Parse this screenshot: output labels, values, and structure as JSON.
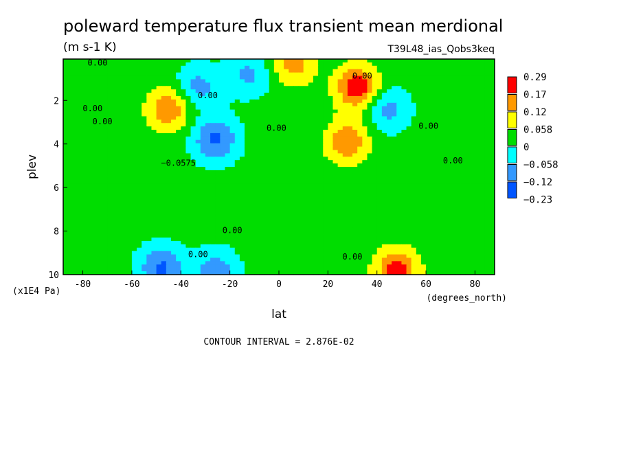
{
  "chart_data": {
    "type": "heatmap",
    "title": "poleward temperature flux transient mean merdional",
    "subtitle": "(m s-1 K)",
    "run_id": "T39L48_ias_Qobs3keq",
    "xlabel": "lat",
    "xunits": "(degrees_north)",
    "ylabel": "plev",
    "yunits": "(x1E4 Pa)",
    "xlim": [
      -88,
      88
    ],
    "ylim": [
      0.1,
      10
    ],
    "y_inverted": true,
    "x_ticks": [
      -80,
      -60,
      -40,
      -20,
      0,
      20,
      40,
      60,
      80
    ],
    "x_tick_labels": [
      "-80",
      "-60",
      "-40",
      "-20",
      "0",
      "20",
      "40",
      "60",
      "80"
    ],
    "y_ticks": [
      2,
      4,
      6,
      8,
      10
    ],
    "y_tick_labels": [
      "2",
      "4",
      "6",
      "8",
      "10"
    ],
    "levels": [
      -0.23,
      -0.12,
      -0.058,
      0,
      0.058,
      0.12,
      0.17,
      0.29
    ],
    "colorbar_labels": [
      "0.29",
      "0.17",
      "0.12",
      "0.058",
      "0",
      "−0.058",
      "−0.12",
      "−0.23"
    ],
    "colorbar_colors": [
      "#ff0000",
      "#ff9900",
      "#ffff00",
      "#00dd00",
      "#00ffff",
      "#3399ff",
      "#0055ff"
    ],
    "contour_labels": [
      "0.00",
      "0.00",
      "0.00",
      "0.00",
      "−0.0575",
      "0.00",
      "0.00",
      "0.00",
      "0.00",
      "0.00",
      "0.00",
      "0.00"
    ],
    "contour_interval_text": "CONTOUR INTERVAL = 2.876E-02",
    "features": [
      {
        "sign": "positive",
        "lat": -45,
        "plev": 2.4,
        "peak": 0.15
      },
      {
        "sign": "positive",
        "lat": 28,
        "plev": 3.9,
        "peak": 0.15
      },
      {
        "sign": "positive",
        "lat": 32,
        "plev": 1.4,
        "peak": 0.2
      },
      {
        "sign": "positive",
        "lat": 48,
        "plev": 9.8,
        "peak": 0.18
      },
      {
        "sign": "positive",
        "lat": 6,
        "plev": 0.3,
        "peak": 0.13
      },
      {
        "sign": "negative",
        "lat": -26,
        "plev": 3.8,
        "peak": -0.15
      },
      {
        "sign": "negative",
        "lat": 44,
        "plev": 2.4,
        "peak": -0.1
      },
      {
        "sign": "negative",
        "lat": -12,
        "plev": 0.8,
        "peak": -0.09
      },
      {
        "sign": "negative",
        "lat": -48,
        "plev": 9.7,
        "peak": -0.15
      },
      {
        "sign": "negative",
        "lat": -26,
        "plev": 9.9,
        "peak": -0.12
      },
      {
        "sign": "negative",
        "lat": -33,
        "plev": 1.4,
        "peak": -0.1
      }
    ]
  }
}
